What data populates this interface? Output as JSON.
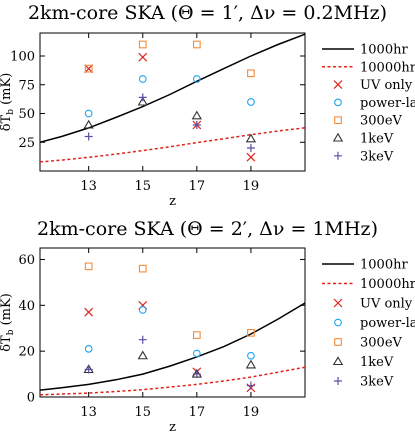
{
  "chart_data": [
    {
      "type": "scatter",
      "title": "2km-core SKA (Θ = 1′, Δν = 0.2MHz)",
      "xlabel": "z",
      "ylabel": "δT̃_b (mK)",
      "ylabel_main": "δT",
      "ylabel_sub": "b",
      "ylabel_unit": " (mK)",
      "xlim": [
        11.2,
        21.0
      ],
      "ylim": [
        0,
        120
      ],
      "xticks": [
        13,
        15,
        17,
        19
      ],
      "yticks": [
        25,
        50,
        75,
        100
      ],
      "grid": false,
      "legend_position": "right",
      "series": [
        {
          "name": "1000hr",
          "kind": "line",
          "style": "solid",
          "color": "#000000",
          "x": [
            11.2,
            12,
            13,
            14,
            15,
            16,
            17,
            18,
            19,
            20,
            21
          ],
          "values": [
            25,
            30,
            37.5,
            46.5,
            56,
            66.5,
            78,
            89,
            100,
            110,
            119
          ]
        },
        {
          "name": "10000hr",
          "kind": "line",
          "style": "dashed",
          "color": "#e0241b",
          "x": [
            11.2,
            12,
            13,
            14,
            15,
            16,
            17,
            18,
            19,
            20,
            21
          ],
          "values": [
            7.9,
            9.5,
            11.9,
            14.7,
            17.7,
            21,
            24.7,
            28.1,
            31.6,
            34.8,
            37.6
          ]
        },
        {
          "name": "UV only",
          "kind": "marker",
          "marker": "x",
          "color": "#e0241b",
          "x": [
            13,
            15,
            17,
            19
          ],
          "values": [
            89,
            99,
            40,
            12
          ]
        },
        {
          "name": "power-law",
          "kind": "marker",
          "marker": "circle",
          "color": "#1aa7ee",
          "x": [
            13,
            15,
            17,
            19
          ],
          "values": [
            50,
            80,
            80,
            60
          ]
        },
        {
          "name": "300eV",
          "kind": "marker",
          "marker": "square",
          "color": "#f28c3c",
          "x": [
            13,
            15,
            17,
            19
          ],
          "values": [
            89,
            110,
            110,
            85
          ]
        },
        {
          "name": "1keV",
          "kind": "marker",
          "marker": "triangle",
          "color": "#333333",
          "x": [
            13,
            15,
            17,
            19
          ],
          "values": [
            40,
            60,
            48,
            28
          ]
        },
        {
          "name": "3keV",
          "kind": "marker",
          "marker": "plus",
          "color": "#5b4fa8",
          "x": [
            13,
            15,
            17,
            19
          ],
          "values": [
            30,
            64,
            40,
            20
          ]
        }
      ]
    },
    {
      "type": "scatter",
      "title": "2km-core SKA (Θ = 2′, Δν = 1MHz)",
      "xlabel": "z",
      "ylabel": "δT̃_b (mK)",
      "ylabel_main": "δT",
      "ylabel_sub": "b",
      "ylabel_unit": " (mK)",
      "xlim": [
        11.2,
        21.0
      ],
      "ylim": [
        0,
        65
      ],
      "xticks": [
        13,
        15,
        17,
        19
      ],
      "yticks": [
        0,
        20,
        40,
        60
      ],
      "grid": false,
      "legend_position": "right",
      "series": [
        {
          "name": "1000hr",
          "kind": "line",
          "style": "solid",
          "color": "#000000",
          "x": [
            11.2,
            12,
            13,
            14,
            15,
            16,
            17,
            18,
            19,
            20,
            21
          ],
          "values": [
            3,
            4,
            5.5,
            7.5,
            10,
            13.5,
            17.5,
            22,
            27.5,
            34,
            41
          ]
        },
        {
          "name": "10000hr",
          "kind": "line",
          "style": "dashed",
          "color": "#e0241b",
          "x": [
            11.2,
            12,
            13,
            14,
            15,
            16,
            17,
            18,
            19,
            20,
            21
          ],
          "values": [
            0.9,
            1.3,
            1.7,
            2.4,
            3.2,
            4.3,
            5.5,
            7,
            8.7,
            10.8,
            13
          ]
        },
        {
          "name": "UV only",
          "kind": "marker",
          "marker": "x",
          "color": "#e0241b",
          "x": [
            13,
            15,
            17,
            19
          ],
          "values": [
            37,
            40,
            11,
            4
          ]
        },
        {
          "name": "power-law",
          "kind": "marker",
          "marker": "circle",
          "color": "#1aa7ee",
          "x": [
            13,
            15,
            17,
            19
          ],
          "values": [
            21,
            38,
            19,
            18
          ]
        },
        {
          "name": "300eV",
          "kind": "marker",
          "marker": "square",
          "color": "#f28c3c",
          "x": [
            13,
            15,
            17,
            19
          ],
          "values": [
            57,
            56,
            27,
            28
          ]
        },
        {
          "name": "1keV",
          "kind": "marker",
          "marker": "triangle",
          "color": "#333333",
          "x": [
            13,
            15,
            17,
            19
          ],
          "values": [
            12,
            18,
            10,
            14
          ]
        },
        {
          "name": "3keV",
          "kind": "marker",
          "marker": "plus",
          "color": "#5b4fa8",
          "x": [
            13,
            15,
            17,
            19
          ],
          "values": [
            12,
            25,
            10,
            5
          ]
        }
      ]
    }
  ]
}
